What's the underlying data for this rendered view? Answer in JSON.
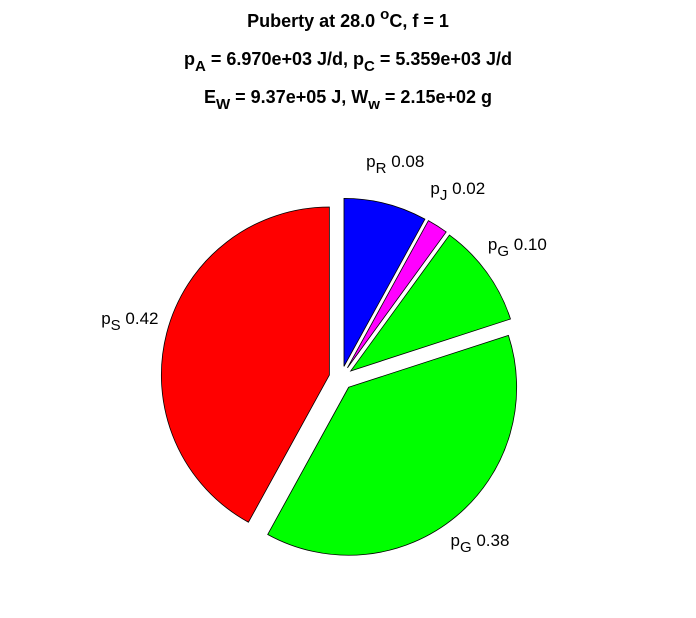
{
  "chart_data": {
    "type": "pie",
    "title": [
      [
        {
          "text": "Puberty at 28.0 "
        },
        {
          "sup": "o"
        },
        {
          "text": "C, f = 1"
        }
      ],
      [
        {
          "text": "p"
        },
        {
          "sub": "A"
        },
        {
          "text": " = 6.970e+03 J/d,  p"
        },
        {
          "sub": "C"
        },
        {
          "text": " = 5.359e+03 J/d"
        }
      ],
      [
        {
          "text": "E"
        },
        {
          "sub": "W"
        },
        {
          "text": " = 9.37e+05 J, W"
        },
        {
          "sub": "w"
        },
        {
          "text": " = 2.15e+02 g"
        }
      ]
    ],
    "categories": [
      {
        "symbol": "p",
        "sub": "R"
      },
      {
        "symbol": "p",
        "sub": "J"
      },
      {
        "symbol": "p",
        "sub": "G"
      },
      {
        "symbol": "p",
        "sub": "G"
      },
      {
        "symbol": "p",
        "sub": "S"
      }
    ],
    "values": [
      0.08,
      0.02,
      0.1,
      0.38,
      0.42
    ],
    "value_labels": [
      "0.08",
      "0.02",
      "0.10",
      "0.38",
      "0.42"
    ],
    "colors": [
      "#0000ff",
      "#ff00ff",
      "#00ff00",
      "#00ff00",
      "#ff0000"
    ],
    "explode": true
  }
}
